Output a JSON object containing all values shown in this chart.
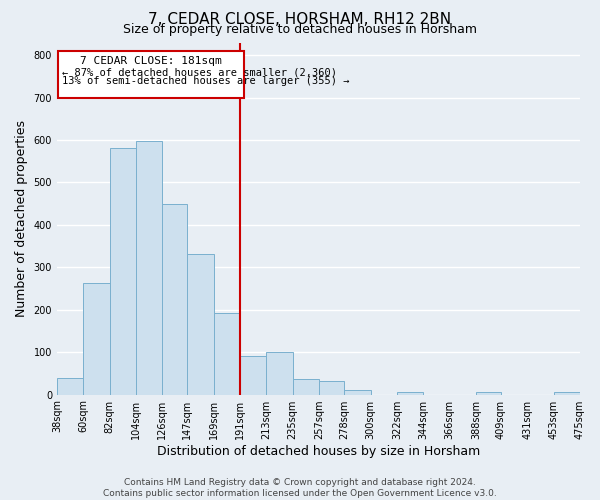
{
  "title": "7, CEDAR CLOSE, HORSHAM, RH12 2BN",
  "subtitle": "Size of property relative to detached houses in Horsham",
  "xlabel": "Distribution of detached houses by size in Horsham",
  "ylabel": "Number of detached properties",
  "bar_left_edges": [
    38,
    60,
    82,
    104,
    126,
    147,
    169,
    191,
    213,
    235,
    257,
    278,
    300,
    322,
    344,
    366,
    388,
    409,
    431,
    453
  ],
  "bar_widths": [
    22,
    22,
    22,
    22,
    21,
    22,
    22,
    22,
    22,
    22,
    21,
    22,
    22,
    22,
    22,
    22,
    21,
    22,
    22,
    22
  ],
  "bar_heights": [
    40,
    262,
    582,
    597,
    450,
    332,
    193,
    92,
    101,
    37,
    32,
    10,
    0,
    5,
    0,
    0,
    5,
    0,
    0,
    5
  ],
  "bar_color": "#cde0ee",
  "bar_edge_color": "#7ab0ce",
  "vline_x": 191,
  "vline_color": "#cc0000",
  "ylim": [
    0,
    830
  ],
  "yticks": [
    0,
    100,
    200,
    300,
    400,
    500,
    600,
    700,
    800
  ],
  "xtick_labels": [
    "38sqm",
    "60sqm",
    "82sqm",
    "104sqm",
    "126sqm",
    "147sqm",
    "169sqm",
    "191sqm",
    "213sqm",
    "235sqm",
    "257sqm",
    "278sqm",
    "300sqm",
    "322sqm",
    "344sqm",
    "366sqm",
    "388sqm",
    "409sqm",
    "431sqm",
    "453sqm",
    "475sqm"
  ],
  "annotation_title": "7 CEDAR CLOSE: 181sqm",
  "annotation_line1": "← 87% of detached houses are smaller (2,360)",
  "annotation_line2": "13% of semi-detached houses are larger (355) →",
  "footer_line1": "Contains HM Land Registry data © Crown copyright and database right 2024.",
  "footer_line2": "Contains public sector information licensed under the Open Government Licence v3.0.",
  "background_color": "#e8eef4",
  "grid_color": "#ffffff",
  "title_fontsize": 11,
  "subtitle_fontsize": 9,
  "axis_label_fontsize": 9,
  "tick_fontsize": 7,
  "annotation_fontsize_title": 8,
  "annotation_fontsize_body": 7.5,
  "footer_fontsize": 6.5,
  "box_edge_color": "#cc0000"
}
